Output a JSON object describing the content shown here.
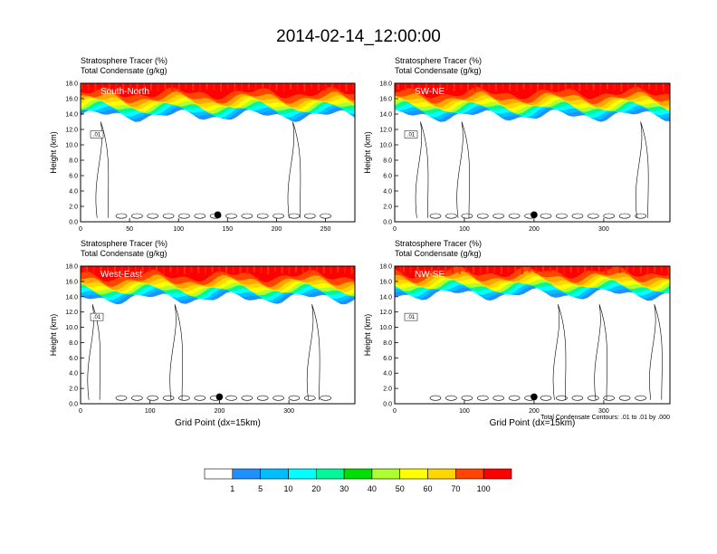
{
  "title": "2014-02-14_12:00:00",
  "header_line1": "Stratosphere Tracer   (%)",
  "header_line2": "Total Condensate   (g/kg)",
  "y_axis_label": "Height (km)",
  "x_axis_label": "Grid Point (dx=15km)",
  "contour_note": "Total Condensate Contours: .01 to .01 by .000",
  "contour_label": ".01",
  "colorbar": {
    "levels": [
      "1",
      "5",
      "10",
      "20",
      "30",
      "40",
      "50",
      "60",
      "70",
      "100"
    ],
    "colors": [
      "#ffffff",
      "#1e90ff",
      "#00bfff",
      "#00ffff",
      "#00fa9a",
      "#00e000",
      "#adff2f",
      "#ffff00",
      "#ffd700",
      "#ffa500",
      "#ff4500",
      "#ff0000"
    ]
  },
  "chart_data": [
    {
      "type": "heatmap",
      "panel": "South-North",
      "y_ticks": [
        "0.0",
        "2.0",
        "4.0",
        "6.0",
        "8.0",
        "10.0",
        "12.0",
        "14.0",
        "16.0",
        "18.0"
      ],
      "ylim": [
        0,
        18
      ],
      "xlim": [
        0,
        280
      ],
      "x_ticks": [
        "0",
        "50",
        "100",
        "150",
        "200",
        "250"
      ],
      "x_tick_values": [
        0,
        50,
        100,
        150,
        200,
        250
      ],
      "tropopause_height_km": 14.5,
      "marker_x": 140
    },
    {
      "type": "heatmap",
      "panel": "SW-NE",
      "y_ticks": [
        "0.0",
        "2.0",
        "4.0",
        "6.0",
        "8.0",
        "10.0",
        "12.0",
        "14.0",
        "16.0",
        "18.0"
      ],
      "ylim": [
        0,
        18
      ],
      "xlim": [
        0,
        395
      ],
      "x_ticks": [
        "0",
        "100",
        "200",
        "300"
      ],
      "x_tick_values": [
        0,
        100,
        200,
        300
      ],
      "tropopause_height_km": 14.5,
      "marker_x": 200
    },
    {
      "type": "heatmap",
      "panel": "West-East",
      "y_ticks": [
        "0.0",
        "2.0",
        "4.0",
        "6.0",
        "8.0",
        "10.0",
        "12.0",
        "14.0",
        "16.0",
        "18.0"
      ],
      "ylim": [
        0,
        18
      ],
      "xlim": [
        0,
        395
      ],
      "x_ticks": [
        "0",
        "100",
        "200",
        "300"
      ],
      "x_tick_values": [
        0,
        100,
        200,
        300
      ],
      "tropopause_height_km": 14.5,
      "marker_x": 200
    },
    {
      "type": "heatmap",
      "panel": "NW-SE",
      "y_ticks": [
        "0.0",
        "2.0",
        "4.0",
        "6.0",
        "8.0",
        "10.0",
        "12.0",
        "14.0",
        "16.0",
        "18.0"
      ],
      "ylim": [
        0,
        18
      ],
      "xlim": [
        0,
        395
      ],
      "x_ticks": [
        "0",
        "100",
        "200",
        "300"
      ],
      "x_tick_values": [
        0,
        100,
        200,
        300
      ],
      "tropopause_height_km": 15,
      "marker_x": 200
    }
  ]
}
